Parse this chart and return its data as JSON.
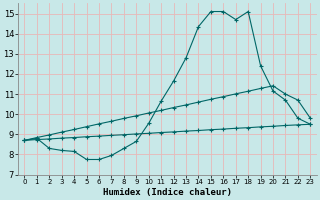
{
  "xlabel": "Humidex (Indice chaleur)",
  "xlim": [
    -0.5,
    23.5
  ],
  "ylim": [
    7,
    15.5
  ],
  "yticks": [
    7,
    8,
    9,
    10,
    11,
    12,
    13,
    14,
    15
  ],
  "xticks": [
    0,
    1,
    2,
    3,
    4,
    5,
    6,
    7,
    8,
    9,
    10,
    11,
    12,
    13,
    14,
    15,
    16,
    17,
    18,
    19,
    20,
    21,
    22,
    23
  ],
  "bg_color": "#c8e8e8",
  "line_color": "#006666",
  "grid_color": "#e8b8b8",
  "line1_x": [
    0,
    1,
    2,
    3,
    4,
    5,
    6,
    7,
    8,
    9,
    10,
    11,
    12,
    13,
    14,
    15,
    16,
    17,
    18,
    19,
    20,
    21,
    22,
    23
  ],
  "line1_y": [
    8.7,
    8.8,
    8.3,
    8.2,
    8.15,
    7.75,
    7.75,
    7.95,
    8.3,
    8.65,
    9.55,
    10.65,
    11.65,
    12.8,
    14.35,
    15.1,
    15.1,
    14.7,
    15.1,
    12.4,
    11.15,
    10.7,
    9.8,
    9.5
  ],
  "line2_x": [
    0,
    1,
    2,
    3,
    4,
    5,
    6,
    7,
    8,
    9,
    10,
    11,
    12,
    13,
    14,
    15,
    16,
    17,
    18,
    19,
    20,
    21,
    22,
    23
  ],
  "line2_y": [
    8.7,
    8.74,
    8.77,
    8.81,
    8.84,
    8.88,
    8.91,
    8.95,
    8.98,
    9.02,
    9.05,
    9.09,
    9.12,
    9.16,
    9.19,
    9.23,
    9.26,
    9.3,
    9.33,
    9.37,
    9.4,
    9.44,
    9.47,
    9.5
  ],
  "line3_x": [
    0,
    1,
    2,
    3,
    4,
    5,
    6,
    7,
    8,
    9,
    10,
    11,
    12,
    13,
    14,
    15,
    16,
    17,
    18,
    19,
    20,
    21,
    22,
    23
  ],
  "line3_y": [
    8.7,
    8.84,
    8.97,
    9.11,
    9.24,
    9.38,
    9.52,
    9.65,
    9.79,
    9.92,
    10.06,
    10.19,
    10.33,
    10.46,
    10.6,
    10.74,
    10.87,
    11.01,
    11.14,
    11.28,
    11.41,
    11.0,
    10.7,
    9.8
  ]
}
